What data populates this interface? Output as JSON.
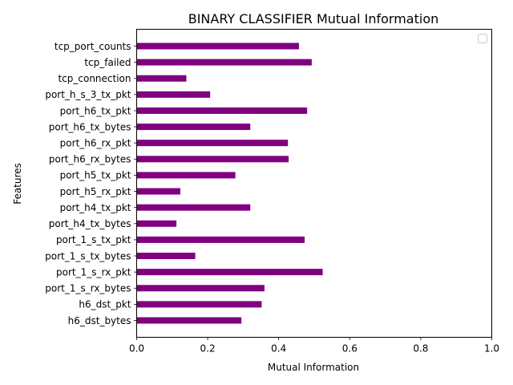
{
  "chart_data": {
    "type": "bar",
    "orientation": "horizontal",
    "title": "BINARY CLASSIFIER Mutual Information",
    "xlabel": "Mutual Information",
    "ylabel": "Features",
    "xlim": [
      0,
      1
    ],
    "xticks": [
      "0.0",
      "0.2",
      "0.4",
      "0.6",
      "0.8",
      "1.0"
    ],
    "grid": false,
    "legend": "top-right",
    "bar_color": "#800080",
    "categories": [
      "h6_dst_bytes",
      "h6_dst_pkt",
      "port_1_s_rx_bytes",
      "port_1_s_rx_pkt",
      "port_1_s_tx_bytes",
      "port_1_s_tx_pkt",
      "port_h4_tx_bytes",
      "port_h4_tx_pkt",
      "port_h5_rx_pkt",
      "port_h5_tx_pkt",
      "port_h6_rx_bytes",
      "port_h6_rx_pkt",
      "port_h6_tx_bytes",
      "port_h6_tx_pkt",
      "port_h_s_3_tx_pkt",
      "tcp_connection",
      "tcp_failed",
      "tcp_port_counts"
    ],
    "values": [
      0.295,
      0.352,
      0.36,
      0.524,
      0.165,
      0.473,
      0.112,
      0.32,
      0.123,
      0.278,
      0.428,
      0.426,
      0.32,
      0.48,
      0.207,
      0.14,
      0.493,
      0.457
    ]
  }
}
